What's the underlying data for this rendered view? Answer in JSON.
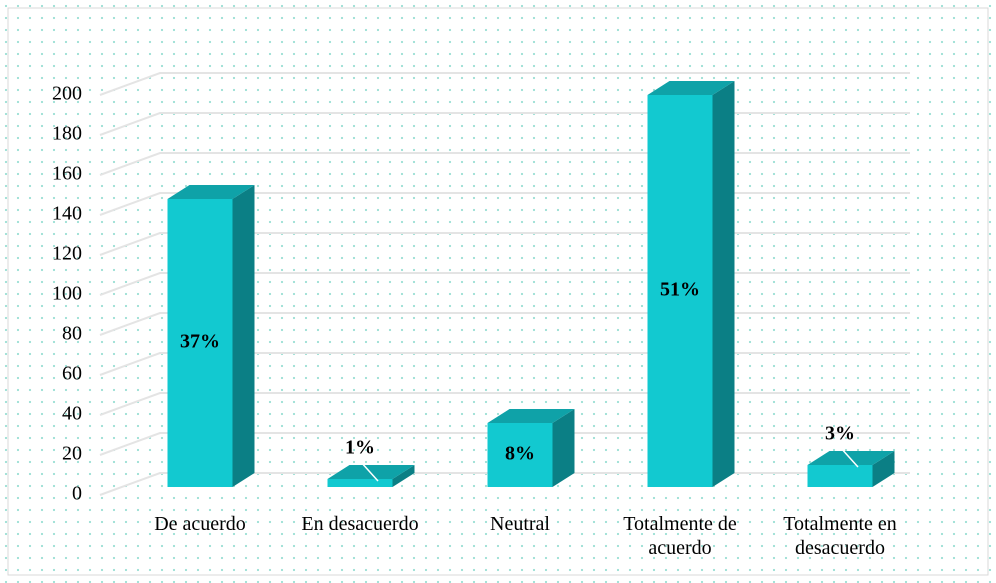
{
  "chart_data": {
    "type": "bar3d",
    "categories": [
      "De acuerdo",
      "En desacuerdo",
      "Neutral",
      "Totalmente de acuerdo",
      "Totalmente en desacuerdo"
    ],
    "values": [
      144,
      4,
      32,
      196,
      11
    ],
    "percent_labels": [
      "37%",
      "1%",
      "8%",
      "51%",
      "3%"
    ],
    "color": "#12c9d0",
    "top_color": "#0fa2a8",
    "side_color": "#0b7f85",
    "ylim": [
      0,
      200
    ],
    "yticks": [
      0,
      20,
      40,
      60,
      80,
      100,
      120,
      140,
      160,
      180,
      200
    ],
    "grid": true
  }
}
